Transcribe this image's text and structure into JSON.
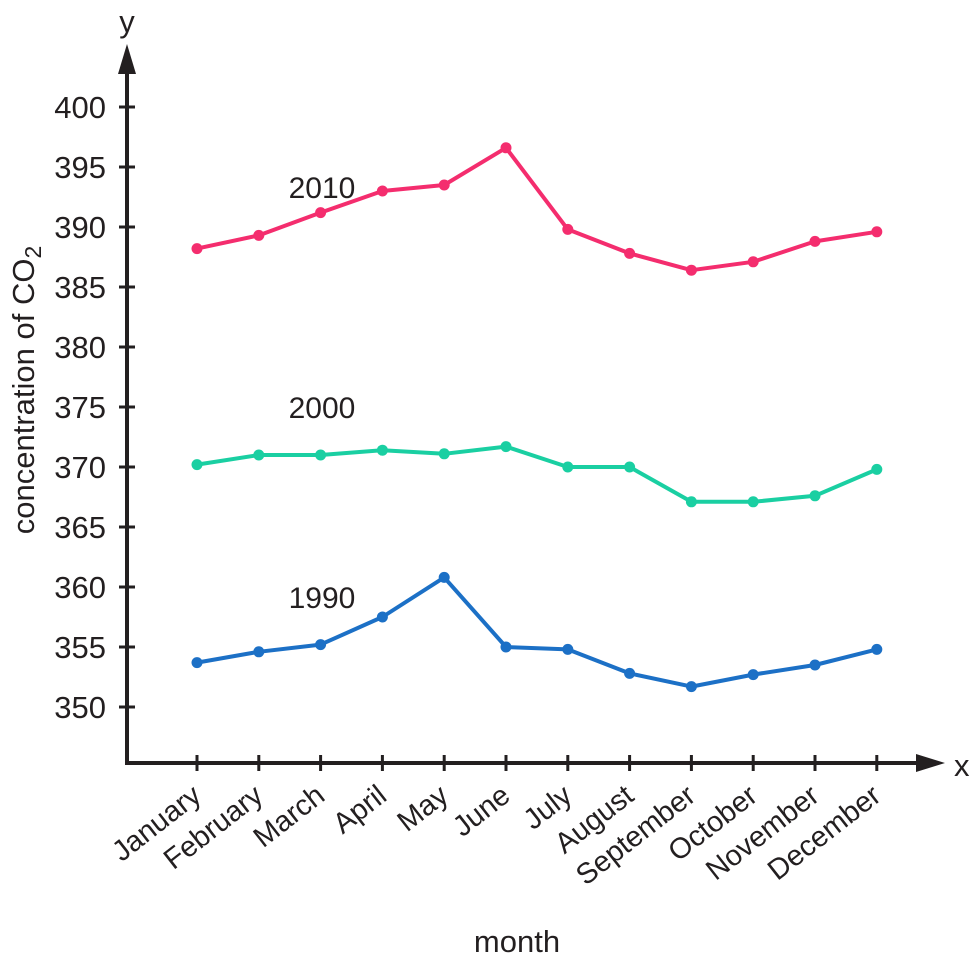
{
  "page": {
    "background": "#ffffff",
    "text_color": "#231F20"
  },
  "chart_data": {
    "type": "line",
    "title": "",
    "xlabel": "month",
    "ylabel": {
      "text": "concentration of CO",
      "subscript": "2"
    },
    "axis_letters": {
      "x": "x",
      "y": "y"
    },
    "categories": [
      "January",
      "February",
      "March",
      "April",
      "May",
      "June",
      "July",
      "August",
      "September",
      "October",
      "November",
      "December"
    ],
    "y_ticks": [
      350,
      355,
      360,
      365,
      370,
      375,
      380,
      385,
      390,
      395,
      400
    ],
    "ylim": [
      345,
      404
    ],
    "grid": false,
    "legend": "inline-labels-near-lines",
    "axis_color": "#231F20",
    "series": [
      {
        "name": "2010",
        "color": "#F42D6E",
        "values": [
          388.2,
          389.3,
          391.2,
          393.0,
          393.5,
          396.6,
          389.8,
          387.8,
          386.4,
          387.1,
          388.8,
          389.6
        ]
      },
      {
        "name": "2000",
        "color": "#1ACFA2",
        "values": [
          370.2,
          371.0,
          371.0,
          371.4,
          371.1,
          371.7,
          370.0,
          370.0,
          367.1,
          367.1,
          367.6,
          369.8
        ]
      },
      {
        "name": "1990",
        "color": "#1C70C6",
        "values": [
          353.7,
          354.6,
          355.2,
          357.5,
          360.8,
          355.0,
          354.8,
          352.8,
          351.7,
          352.7,
          353.5,
          354.8
        ]
      }
    ]
  }
}
